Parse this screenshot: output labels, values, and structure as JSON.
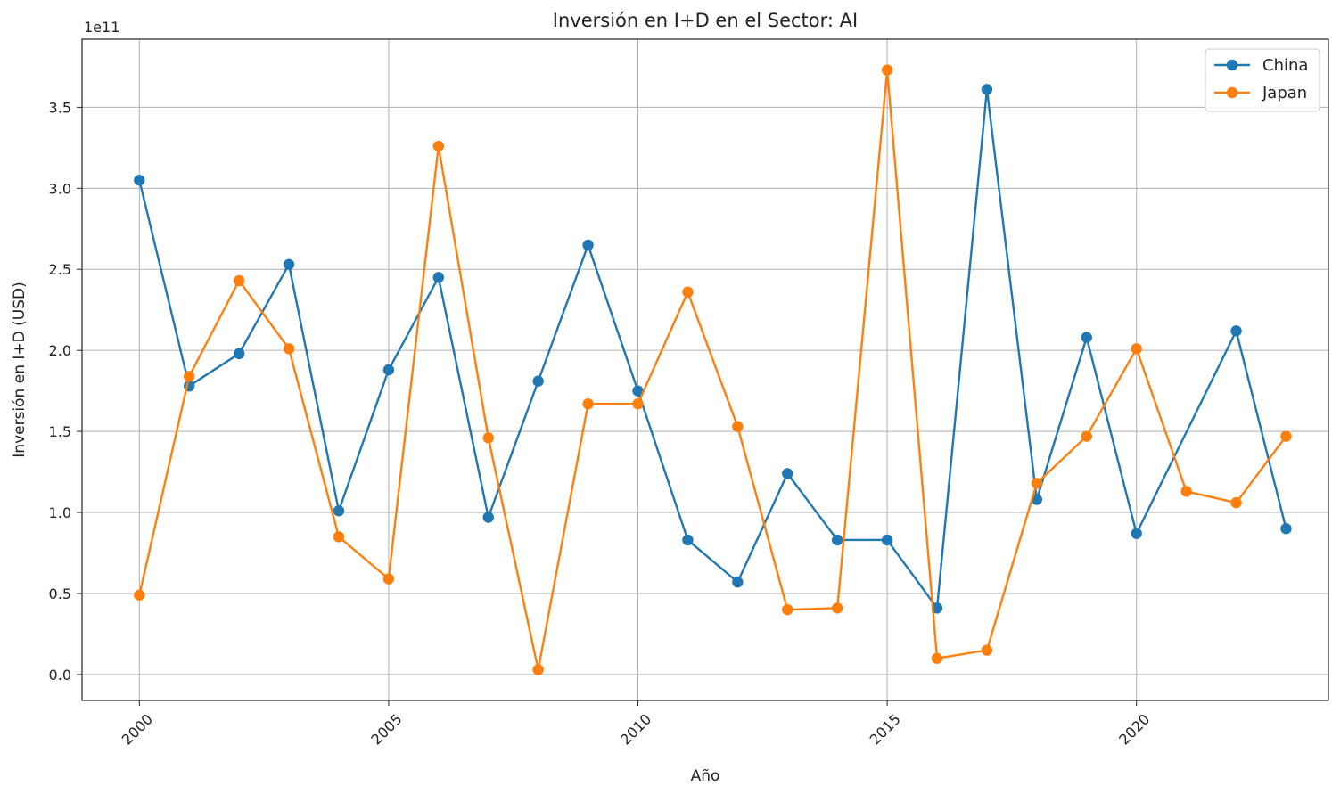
{
  "chart_data": {
    "type": "line",
    "title": "Inversión en I+D en el Sector: AI",
    "xlabel": "Año",
    "ylabel": "Inversión en I+D (USD)",
    "y_offset_label": "1e11",
    "y_scale": 100000000000.0,
    "x": [
      2000,
      2001,
      2002,
      2003,
      2004,
      2005,
      2006,
      2007,
      2008,
      2009,
      2010,
      2011,
      2012,
      2013,
      2014,
      2015,
      2016,
      2017,
      2018,
      2019,
      2020,
      2021,
      2022,
      2023
    ],
    "xlim": [
      1998.85,
      2023.85
    ],
    "ylim": [
      -0.16,
      3.92
    ],
    "x_ticks": [
      2000,
      2005,
      2010,
      2015,
      2020
    ],
    "x_tick_labels": [
      "2000",
      "2005",
      "2010",
      "2015",
      "2020"
    ],
    "y_ticks": [
      0.0,
      0.5,
      1.0,
      1.5,
      2.0,
      2.5,
      3.0,
      3.5
    ],
    "y_tick_labels": [
      "0.0",
      "0.5",
      "1.0",
      "1.5",
      "2.0",
      "2.5",
      "3.0",
      "3.5"
    ],
    "grid": true,
    "legend_position": "top-right",
    "series": [
      {
        "name": "China",
        "color": "#1f77b4",
        "values": [
          3.05,
          1.78,
          1.98,
          2.53,
          1.01,
          1.88,
          2.45,
          0.97,
          1.81,
          2.65,
          1.75,
          0.83,
          0.57,
          1.24,
          0.83,
          0.83,
          0.41,
          3.61,
          1.08,
          2.08,
          0.87,
          null,
          2.12,
          0.9
        ]
      },
      {
        "name": "Japan",
        "color": "#ff7f0e",
        "values": [
          0.49,
          1.84,
          2.43,
          2.01,
          0.85,
          0.59,
          3.26,
          1.46,
          0.03,
          1.67,
          1.67,
          2.36,
          1.53,
          0.4,
          0.41,
          3.73,
          0.1,
          0.15,
          1.18,
          1.47,
          2.01,
          1.13,
          1.06,
          1.47
        ]
      }
    ]
  }
}
